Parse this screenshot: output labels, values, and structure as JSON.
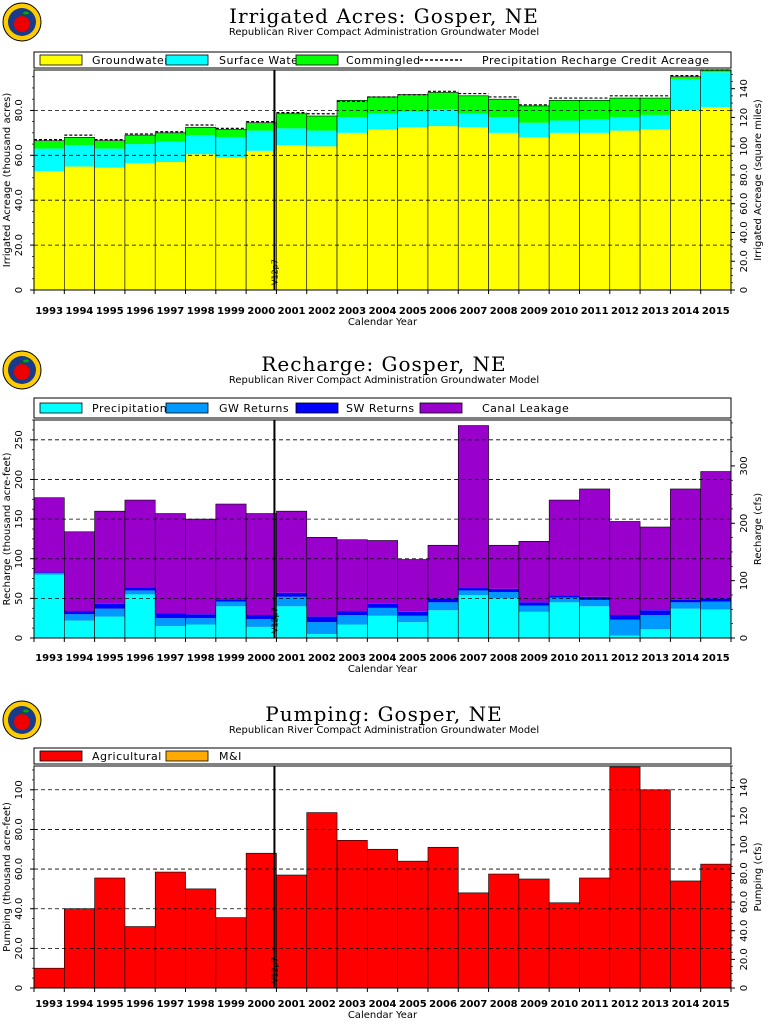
{
  "chart_data": [
    {
      "type": "bar",
      "stacked": true,
      "title": "Irrigated Acres: Gosper, NE",
      "subtitle": "Republican River Compact Administration Groundwater Model",
      "xlabel": "Calendar Year",
      "ylabel": "Irrigated Acreage (thousand acres)",
      "ylabel_right": "Irrigated Acreage (square miles)",
      "marker_label": "V12p7",
      "marker_after": "2000",
      "categories": [
        "1993",
        "1994",
        "1995",
        "1996",
        "1997",
        "1998",
        "1999",
        "2000",
        "2001",
        "2002",
        "2003",
        "2004",
        "2005",
        "2006",
        "2007",
        "2008",
        "2009",
        "2010",
        "2011",
        "2012",
        "2013",
        "2014",
        "2015"
      ],
      "ylim": [
        0,
        98
      ],
      "yticks": [
        0,
        20,
        40,
        60,
        80
      ],
      "ytick_labels": [
        "0",
        "20.0",
        "40.0",
        "60.0",
        "80.0"
      ],
      "y2lim": [
        0,
        153
      ],
      "y2ticks": [
        0,
        20,
        40,
        60,
        80,
        100,
        120,
        140
      ],
      "y2tick_labels": [
        "0",
        "20.0",
        "40.0",
        "60.0",
        "80.0",
        "100",
        "120",
        "140"
      ],
      "series": [
        {
          "name": "Groundwater",
          "color": "#ffff00",
          "values": [
            53.0,
            55.0,
            54.5,
            56.5,
            57.0,
            60.5,
            59.0,
            62.0,
            64.5,
            64.0,
            70.0,
            71.5,
            72.5,
            73.0,
            72.5,
            70.0,
            68.0,
            70.0,
            70.0,
            71.0,
            71.5,
            80.0,
            81.5
          ]
        },
        {
          "name": "Surface Water",
          "color": "#00ffff",
          "values": [
            10.0,
            9.5,
            8.5,
            8.5,
            9.0,
            8.5,
            9.0,
            9.0,
            7.5,
            7.0,
            7.0,
            7.0,
            7.0,
            7.5,
            6.0,
            7.0,
            6.5,
            5.5,
            6.0,
            6.0,
            6.5,
            14.0,
            15.5
          ]
        },
        {
          "name": "Commingled",
          "color": "#00ff00",
          "values": [
            3.5,
            3.5,
            3.5,
            4.0,
            4.0,
            3.5,
            3.5,
            3.5,
            6.5,
            6.5,
            7.5,
            7.5,
            7.5,
            7.5,
            8.0,
            8.0,
            7.5,
            9.0,
            8.5,
            8.5,
            7.5,
            1.0,
            1.0
          ]
        }
      ],
      "legend": [
        "Groundwater",
        "Surface Water",
        "Commingled",
        "Precipitation Recharge Credit Acreage"
      ],
      "precip_credit_line": [
        67.0,
        69.0,
        67.0,
        69.5,
        70.5,
        73.5,
        72.0,
        75.0,
        79.0,
        78.5,
        84.0,
        86.0,
        87.0,
        88.5,
        87.5,
        86.0,
        82.5,
        85.5,
        85.5,
        86.5,
        86.5,
        95.5,
        98.0
      ]
    },
    {
      "type": "bar",
      "stacked": true,
      "title": "Recharge: Gosper, NE",
      "subtitle": "Republican River Compact Administration Groundwater Model",
      "xlabel": "Calendar Year",
      "ylabel": "Recharge (thousand acre-feet)",
      "ylabel_right": "Recharge (cfs)",
      "marker_label": "V12p7",
      "marker_after": "2000",
      "categories": [
        "1993",
        "1994",
        "1995",
        "1996",
        "1997",
        "1998",
        "1999",
        "2000",
        "2001",
        "2002",
        "2003",
        "2004",
        "2005",
        "2006",
        "2007",
        "2008",
        "2009",
        "2010",
        "2011",
        "2012",
        "2013",
        "2014",
        "2015"
      ],
      "ylim": [
        0,
        275
      ],
      "yticks": [
        0,
        50,
        100,
        150,
        200,
        250
      ],
      "ytick_labels": [
        "0",
        "50",
        "100",
        "150",
        "200",
        "250"
      ],
      "y2lim": [
        0,
        380
      ],
      "y2ticks": [
        0,
        100,
        200,
        300
      ],
      "y2tick_labels": [
        "0",
        "100",
        "200",
        "300"
      ],
      "series": [
        {
          "name": "Precipitation",
          "color": "#00ffff",
          "values": [
            80,
            22,
            27,
            55,
            15,
            17,
            40,
            14,
            40,
            5,
            17,
            28,
            20,
            35,
            54,
            50,
            33,
            45,
            40,
            3,
            11,
            37,
            36
          ]
        },
        {
          "name": "GW Returns",
          "color": "#0099ff",
          "values": [
            2,
            8,
            10,
            5,
            10,
            8,
            6,
            10,
            12,
            15,
            12,
            10,
            8,
            10,
            6,
            8,
            8,
            6,
            8,
            20,
            18,
            8,
            10
          ]
        },
        {
          "name": "SW Returns",
          "color": "#0000ff",
          "values": [
            1,
            4,
            6,
            4,
            6,
            5,
            3,
            5,
            5,
            7,
            5,
            5,
            5,
            5,
            3,
            4,
            4,
            3,
            4,
            6,
            6,
            3,
            4
          ]
        },
        {
          "name": "Canal Leakage",
          "color": "#9900cc",
          "values": [
            94,
            100,
            117,
            110,
            126,
            120,
            120,
            128,
            103,
            100,
            90,
            80,
            66,
            67,
            205,
            55,
            77,
            120,
            136,
            118,
            105,
            140,
            160
          ]
        }
      ],
      "legend": [
        "Precipitation",
        "GW Returns",
        "SW Returns",
        "Canal Leakage"
      ]
    },
    {
      "type": "bar",
      "stacked": true,
      "title": "Pumping: Gosper, NE",
      "subtitle": "Republican River Compact Administration Groundwater Model",
      "xlabel": "Calendar Year",
      "ylabel": "Pumping (thousand acre-feet)",
      "ylabel_right": "Pumping (cfs)",
      "marker_label": "V12p7",
      "marker_after": "2000",
      "categories": [
        "1993",
        "1994",
        "1995",
        "1996",
        "1997",
        "1998",
        "1999",
        "2000",
        "2001",
        "2002",
        "2003",
        "2004",
        "2005",
        "2006",
        "2007",
        "2008",
        "2009",
        "2010",
        "2011",
        "2012",
        "2013",
        "2014",
        "2015"
      ],
      "ylim": [
        0,
        112
      ],
      "yticks": [
        0,
        20,
        40,
        60,
        80,
        100
      ],
      "ytick_labels": [
        "0",
        "20.0",
        "40.0",
        "60.0",
        "80.0",
        "100"
      ],
      "y2lim": [
        0,
        155
      ],
      "y2ticks": [
        0,
        20,
        40,
        60,
        80,
        100,
        120,
        140
      ],
      "y2tick_labels": [
        "0",
        "20.0",
        "40.0",
        "60.0",
        "80.0",
        "100",
        "120",
        "140"
      ],
      "series": [
        {
          "name": "Agricultural",
          "color": "#ff0000",
          "values": [
            10.0,
            40.0,
            55.5,
            31.0,
            58.5,
            50.0,
            35.5,
            68.0,
            57.0,
            88.5,
            74.5,
            70.0,
            64.0,
            71.0,
            48.0,
            57.5,
            55.0,
            43.0,
            55.5,
            111.5,
            100.0,
            54.0,
            62.5
          ]
        },
        {
          "name": "M&I",
          "color": "#ffaa00",
          "values": [
            0,
            0,
            0,
            0,
            0,
            0,
            0,
            0,
            0,
            0,
            0,
            0,
            0,
            0,
            0,
            0,
            0,
            0,
            0,
            0,
            0,
            0,
            0
          ]
        }
      ],
      "legend": [
        "Agricultural",
        "M&I"
      ]
    }
  ]
}
